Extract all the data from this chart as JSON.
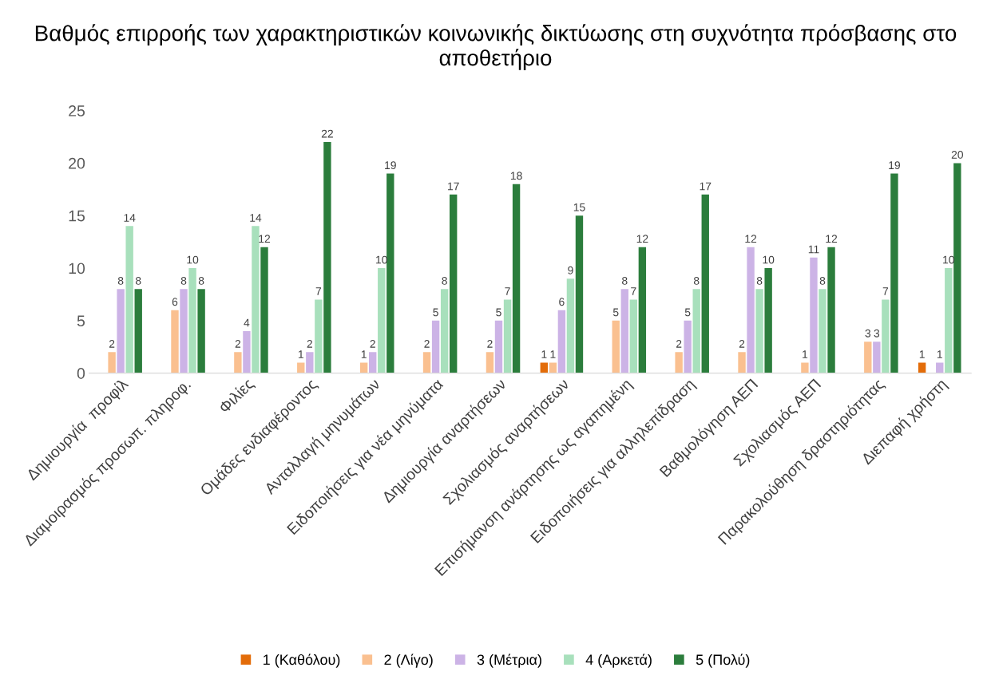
{
  "chart_data": {
    "type": "bar",
    "title": "Βαθμός επιρροής των χαρακτηριστικών κοινωνικής δικτύωσης στη συχνότητα πρόσβασης στο αποθετήριο",
    "categories": [
      "Δημιουργία  προφίλ",
      "Διαμοιρασμός προσωπ. πληροφ.",
      "Φιλίες",
      "Ομάδες ενδιαφέροντος",
      "Ανταλλαγή μηνυμάτων",
      "Ειδοποιήσεις για νέα μηνύματα",
      "Δημιουργία αναρτήσεων",
      "Σχολιασμός αναρτήσεων",
      "Επισήμανση ανάρτησης ως αγαπημένη",
      "Ειδοποιήσεις για αλληλεπίδραση",
      "Βαθμολόγηση ΑΕΠ",
      "Σχολιασμός ΑΕΠ",
      "Παρακολούθηση δραστηριότητας",
      "Διεπαφή χρήστη"
    ],
    "series": [
      {
        "name": "1 (Καθόλου)",
        "color": "#e36c09",
        "values": [
          null,
          null,
          null,
          null,
          null,
          null,
          null,
          1,
          null,
          null,
          null,
          null,
          null,
          1
        ]
      },
      {
        "name": "2 (Λίγο)",
        "color": "#fac090",
        "values": [
          2,
          6,
          2,
          1,
          1,
          2,
          2,
          1,
          5,
          2,
          2,
          1,
          3,
          null
        ]
      },
      {
        "name": "3 (Μέτρια)",
        "color": "#ccb3e6",
        "values": [
          8,
          8,
          4,
          2,
          2,
          5,
          5,
          6,
          8,
          5,
          12,
          11,
          3,
          1
        ]
      },
      {
        "name": "4 (Αρκετά)",
        "color": "#a8e0bc",
        "values": [
          14,
          10,
          14,
          7,
          10,
          8,
          7,
          9,
          7,
          8,
          8,
          8,
          7,
          10
        ]
      },
      {
        "name": "5 (Πολύ)",
        "color": "#2b7d3c",
        "values": [
          8,
          8,
          12,
          22,
          19,
          17,
          18,
          15,
          12,
          17,
          10,
          12,
          19,
          20
        ]
      }
    ],
    "ylim": [
      0,
      25
    ],
    "yticks": [
      0,
      5,
      10,
      15,
      20,
      25
    ],
    "grid": false,
    "legend": "bottom",
    "data_labels": true
  }
}
